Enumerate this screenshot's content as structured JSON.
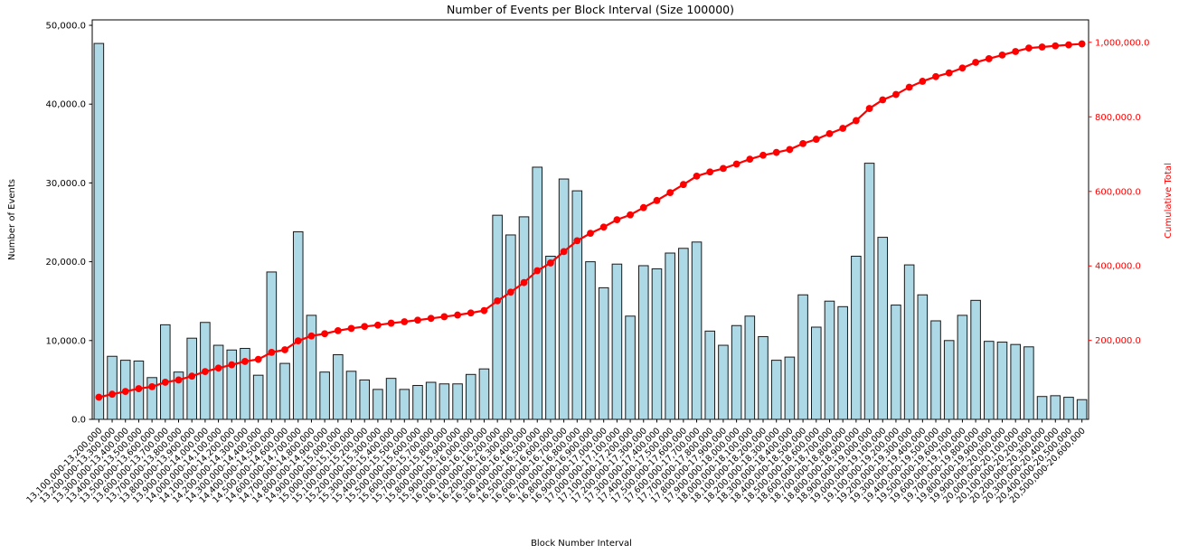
{
  "chart_data": {
    "type": "bar+line",
    "title": "Number of Events per Block Interval (Size 100000)",
    "xlabel": "Block Number Interval",
    "ylabel_left": "Number of Events",
    "ylabel_right": "Cumulative Total",
    "grid": false,
    "legend": "none",
    "categories": [
      "13,100,000-13,200,000",
      "13,200,000-13,300,000",
      "13,300,000-13,400,000",
      "13,400,000-13,500,000",
      "13,500,000-13,600,000",
      "13,600,000-13,700,000",
      "13,700,000-13,800,000",
      "13,800,000-13,900,000",
      "13,900,000-14,000,000",
      "14,000,000-14,100,000",
      "14,100,000-14,200,000",
      "14,200,000-14,300,000",
      "14,300,000-14,400,000",
      "14,400,000-14,500,000",
      "14,500,000-14,600,000",
      "14,600,000-14,700,000",
      "14,700,000-14,800,000",
      "14,800,000-14,900,000",
      "14,900,000-15,000,000",
      "15,000,000-15,100,000",
      "15,100,000-15,200,000",
      "15,200,000-15,300,000",
      "15,300,000-15,400,000",
      "15,400,000-15,500,000",
      "15,500,000-15,600,000",
      "15,600,000-15,700,000",
      "15,700,000-15,800,000",
      "15,800,000-15,900,000",
      "15,900,000-16,000,000",
      "16,000,000-16,100,000",
      "16,100,000-16,200,000",
      "16,200,000-16,300,000",
      "16,300,000-16,400,000",
      "16,400,000-16,500,000",
      "16,500,000-16,600,000",
      "16,600,000-16,700,000",
      "16,700,000-16,800,000",
      "16,800,000-16,900,000",
      "16,900,000-17,000,000",
      "17,000,000-17,100,000",
      "17,100,000-17,200,000",
      "17,200,000-17,300,000",
      "17,300,000-17,400,000",
      "17,400,000-17,500,000",
      "17,500,000-17,600,000",
      "17,600,000-17,700,000",
      "17,700,000-17,800,000",
      "17,800,000-17,900,000",
      "17,900,000-18,000,000",
      "18,000,000-18,100,000",
      "18,100,000-18,200,000",
      "18,200,000-18,300,000",
      "18,300,000-18,400,000",
      "18,400,000-18,500,000",
      "18,500,000-18,600,000",
      "18,600,000-18,700,000",
      "18,700,000-18,800,000",
      "18,800,000-18,900,000",
      "18,900,000-19,000,000",
      "19,000,000-19,100,000",
      "19,100,000-19,200,000",
      "19,200,000-19,300,000",
      "19,300,000-19,400,000",
      "19,400,000-19,500,000",
      "19,500,000-19,600,000",
      "19,600,000-19,700,000",
      "19,700,000-19,800,000",
      "19,800,000-19,900,000",
      "19,900,000-20,000,000",
      "20,000,000-20,100,000",
      "20,100,000-20,200,000",
      "20,200,000-20,300,000",
      "20,300,000-20,400,000",
      "20,400,000-20,500,000",
      "20,500,000-20,600,000"
    ],
    "series": [
      {
        "name": "Number of Events",
        "type": "bar",
        "axis": "left",
        "values": [
          47700,
          8000,
          7500,
          7400,
          5300,
          12000,
          6000,
          10300,
          12300,
          9400,
          8800,
          9000,
          5600,
          18700,
          7100,
          23800,
          13200,
          6000,
          8200,
          6100,
          5000,
          3800,
          5200,
          3800,
          4300,
          4700,
          4500,
          4500,
          5700,
          6400,
          25900,
          23400,
          25700,
          32000,
          20700,
          30500,
          29000,
          20000,
          16700,
          19700,
          13100,
          19500,
          19100,
          21100,
          21700,
          22500,
          11200,
          9400,
          11900,
          13100,
          10500,
          7500,
          7900,
          15800,
          11700,
          15000,
          14300,
          20700,
          32500,
          23100,
          14500,
          19600,
          15800,
          12500,
          10000,
          13200,
          15100,
          9900,
          9800,
          9500,
          9200,
          2900,
          3000,
          2800,
          2500
        ]
      },
      {
        "name": "Cumulative Total",
        "type": "line",
        "axis": "right",
        "marker": "circle",
        "values": [
          47700,
          55700,
          63200,
          70600,
          75900,
          87900,
          93900,
          104200,
          116500,
          125900,
          134700,
          143700,
          149300,
          168000,
          175100,
          198900,
          212100,
          218100,
          226300,
          232400,
          237400,
          241200,
          246400,
          250200,
          254500,
          259200,
          263700,
          268200,
          273900,
          280300,
          306200,
          329600,
          355300,
          387300,
          408000,
          438500,
          467500,
          487500,
          504200,
          523900,
          537000,
          556500,
          575600,
          596700,
          618400,
          640900,
          652100,
          661500,
          673400,
          686500,
          697000,
          704500,
          712400,
          728200,
          739900,
          754900,
          769200,
          789900,
          822400,
          845500,
          860000,
          879600,
          895400,
          907900,
          917900,
          931100,
          946200,
          956100,
          965900,
          975400,
          984600,
          987500,
          990500,
          993300,
          995800
        ]
      }
    ],
    "left_axis": {
      "range": [
        0,
        50690
      ],
      "ticks": [
        {
          "v": 0,
          "label": "0.0"
        },
        {
          "v": 10000,
          "label": "10,000.0"
        },
        {
          "v": 20000,
          "label": "20,000.0"
        },
        {
          "v": 30000,
          "label": "30,000.0"
        },
        {
          "v": 40000,
          "label": "40,000.0"
        },
        {
          "v": 50000,
          "label": "50,000.0"
        }
      ]
    },
    "right_axis": {
      "range": [
        -11700,
        1060200
      ],
      "ticks": [
        {
          "v": 200000,
          "label": "200,000.0"
        },
        {
          "v": 400000,
          "label": "400,000.0"
        },
        {
          "v": 600000,
          "label": "600,000.0"
        },
        {
          "v": 800000,
          "label": "800,000.0"
        },
        {
          "v": 1000000,
          "label": "1,000,000.0"
        }
      ]
    },
    "colors": {
      "bar_fill": "#add8e6",
      "bar_edge": "#1a1a1a",
      "line": "#ff0000",
      "right_axis_text": "#ff0000",
      "axis_text": "#000000",
      "spine": "#000000",
      "background": "#ffffff"
    }
  }
}
